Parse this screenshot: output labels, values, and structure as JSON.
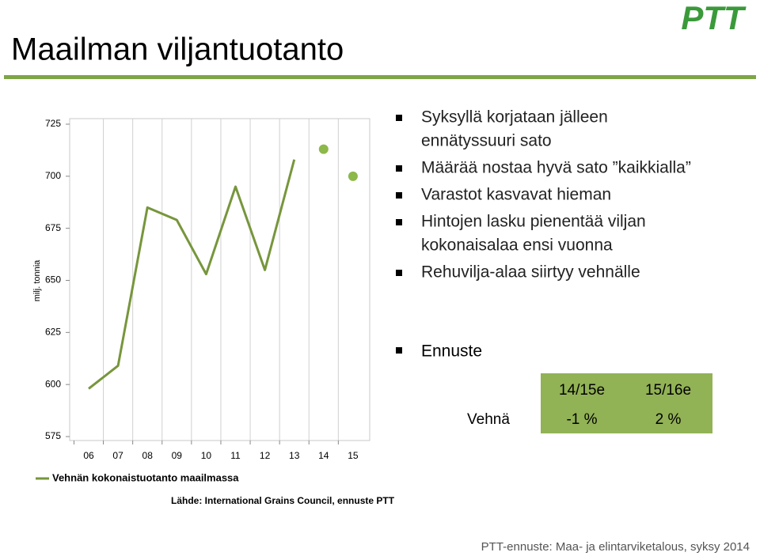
{
  "title": "Maailman viljantuotanto",
  "logo": "PTT",
  "bullets": [
    [
      "Syksyllä korjataan jälleen",
      "ennätyssuuri sato"
    ],
    [
      "Määrää nostaa hyvä sato ”kaikkialla”"
    ],
    [
      "Varastot kasvavat hieman"
    ],
    [
      "Hintojen lasku pienentää viljan",
      "kokonaisalaa ensi vuonna"
    ],
    [
      "Rehuvilja-alaa siirtyy vehnälle"
    ]
  ],
  "forecast_heading": "Ennuste",
  "table": {
    "header": [
      "14/15e",
      "15/16e"
    ],
    "rows": [
      [
        "Vehnä",
        "-1 %",
        "2 %"
      ]
    ]
  },
  "source": "Lähde: International Grains Council, ennuste PTT",
  "footer": "PTT-ennuste: Maa- ja elintarviketalous, syksy 2014",
  "chart_data": {
    "type": "line",
    "y_label": "milj. tonnia",
    "categories": [
      "06",
      "07",
      "08",
      "09",
      "10",
      "11",
      "12",
      "13",
      "14",
      "15"
    ],
    "series": [
      {
        "name": "Vehnän kokonaistuotanto maailmassa",
        "color": "#77963c",
        "values": [
          598,
          609,
          685,
          679,
          653,
          695,
          655,
          708,
          null,
          null
        ]
      },
      {
        "color": "#8db84a",
        "values": [
          null,
          null,
          null,
          null,
          null,
          null,
          null,
          null,
          713,
          700
        ]
      }
    ],
    "ylim": [
      575,
      725
    ],
    "yticks": [
      575,
      600,
      625,
      650,
      675,
      700,
      725
    ],
    "grid": "x"
  }
}
